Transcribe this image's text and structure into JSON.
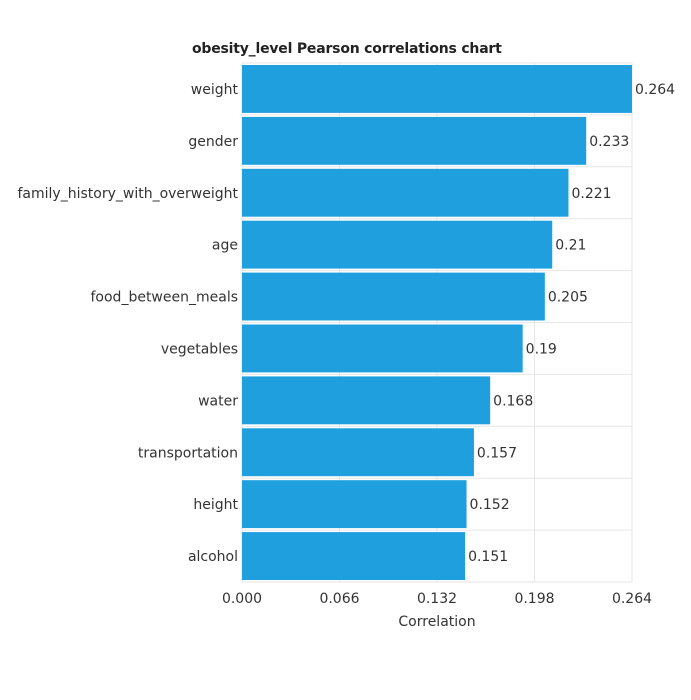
{
  "chart_data": {
    "type": "bar",
    "orientation": "horizontal",
    "title": "obesity_level Pearson correlations chart",
    "xlabel": "Correlation",
    "ylabel": "",
    "categories": [
      "weight",
      "gender",
      "family_history_with_overweight",
      "age",
      "food_between_meals",
      "vegetables",
      "water",
      "transportation",
      "height",
      "alcohol"
    ],
    "values": [
      0.264,
      0.233,
      0.221,
      0.21,
      0.205,
      0.19,
      0.168,
      0.157,
      0.152,
      0.151
    ],
    "data_labels": [
      "0.264",
      "0.233",
      "0.221",
      "0.21",
      "0.205",
      "0.19",
      "0.168",
      "0.157",
      "0.152",
      "0.151"
    ],
    "xlim": [
      0,
      0.264
    ],
    "xticks": [
      "0.000",
      "0.066",
      "0.132",
      "0.198",
      "0.264"
    ],
    "grid": true,
    "bar_color": "#209fde",
    "grid_color": "#e6e6e6",
    "text_color": "#333333"
  }
}
